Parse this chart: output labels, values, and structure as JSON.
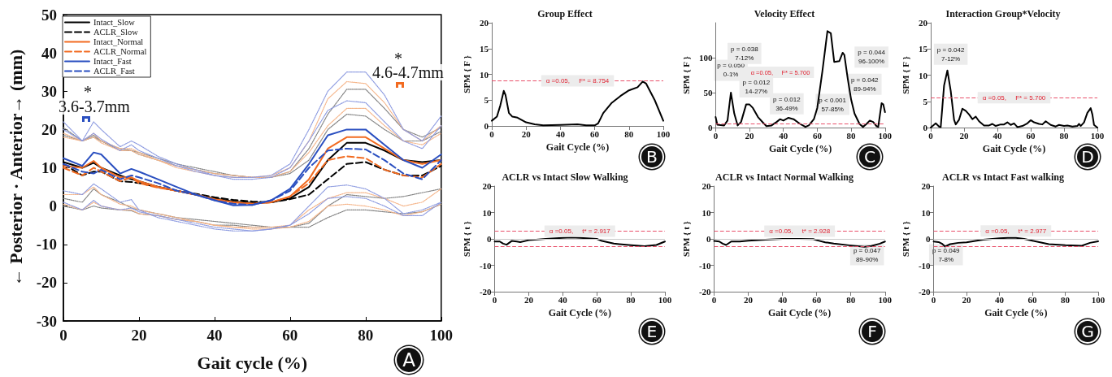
{
  "chart_data": [
    {
      "type": "line",
      "xlabel": "Gait cycle (%)",
      "ylabel": "← Posterior · Anterior→ (mm)",
      "x": [
        0,
        5,
        8,
        10,
        15,
        18,
        20,
        25,
        30,
        35,
        40,
        45,
        50,
        55,
        60,
        65,
        70,
        75,
        80,
        85,
        90,
        95,
        100
      ],
      "xlim": [
        0,
        100
      ],
      "xticks": [
        0,
        20,
        40,
        60,
        80,
        100
      ],
      "ylim": [
        -30,
        50
      ],
      "yticks": [
        -30,
        -20,
        -10,
        0,
        10,
        20,
        30,
        40,
        50
      ],
      "legend": "top left",
      "series": [
        {
          "name": "Intact_Slow",
          "color": "#000000",
          "line_style": "solid",
          "values": [
            11.5,
            10,
            11.3,
            10,
            8,
            7,
            6.5,
            5,
            4,
            3,
            2,
            1.2,
            0.8,
            1,
            2,
            5,
            12,
            16.5,
            16.5,
            14.5,
            12,
            11.5,
            12
          ]
        },
        {
          "name": "ACLR_Slow",
          "color": "#000000",
          "line_style": "dashed",
          "values": [
            11,
            8,
            9,
            9,
            6.5,
            6.3,
            6,
            5,
            4,
            3.2,
            2.3,
            1.6,
            1.2,
            1,
            1.8,
            3,
            7,
            11,
            11.5,
            9.5,
            8,
            8,
            10.5
          ]
        },
        {
          "name": "Intact_Normal",
          "color": "#f26b21",
          "line_style": "solid",
          "values": [
            10.5,
            10,
            11.8,
            10,
            7.5,
            7.5,
            6.5,
            5,
            4,
            3,
            1.8,
            1,
            0.6,
            1,
            2.5,
            7,
            15,
            18,
            18,
            15,
            12,
            11,
            12
          ]
        },
        {
          "name": "ACLR_Normal",
          "color": "#f26b21",
          "line_style": "dashed",
          "values": [
            10,
            8,
            10,
            9,
            6.5,
            7.5,
            6,
            4.8,
            4,
            3,
            1.8,
            1,
            0.6,
            1,
            2.5,
            6,
            12,
            13,
            12.5,
            9.5,
            8,
            7.5,
            11
          ]
        },
        {
          "name": "Intact_Fast",
          "color": "#2a4fc0",
          "line_style": "solid",
          "values": [
            12.5,
            10.5,
            14,
            13.5,
            8.5,
            9.7,
            9,
            7,
            5,
            3,
            1.5,
            0.2,
            0.3,
            1.5,
            4.5,
            11,
            18.5,
            20,
            20,
            16,
            12,
            10,
            13.5
          ]
        },
        {
          "name": "ACLR_Fast",
          "color": "#2a4fc0",
          "line_style": "dashed",
          "values": [
            11,
            9,
            8.5,
            9.5,
            7,
            8,
            7.5,
            6,
            4,
            3,
            1.5,
            0.6,
            0.3,
            1.5,
            4,
            10,
            14.5,
            15,
            14.8,
            12,
            8.5,
            7,
            12
          ]
        },
        {
          "color": "#808080",
          "line_style": "dotted",
          "values": [
            20.5,
            17,
            18.5,
            17,
            15,
            14.5,
            14,
            12.5,
            11,
            10,
            9,
            8,
            7.5,
            7.5,
            9,
            15,
            24,
            30.5,
            30.5,
            25.5,
            20,
            18,
            20.5
          ]
        },
        {
          "color": "#808080",
          "line_style": "dotted",
          "values": [
            2,
            1,
            4.5,
            3,
            1,
            -0.5,
            -1,
            -2,
            -3,
            -3.5,
            -4,
            -4.5,
            -5,
            -5.5,
            -5.5,
            -4.5,
            0,
            3,
            2.5,
            2,
            2.5,
            3.5,
            4.5
          ]
        },
        {
          "color": "#808080",
          "line_style": "dotted",
          "values": [
            18.5,
            17,
            18,
            17,
            14.5,
            14.5,
            13.5,
            12,
            10.5,
            9.5,
            8.5,
            8,
            7.5,
            7.5,
            8.5,
            12,
            20,
            24,
            23.5,
            20,
            17,
            17,
            19.5
          ]
        },
        {
          "color": "#808080",
          "line_style": "dotted",
          "values": [
            0,
            -1,
            0,
            -0.5,
            -1,
            -1.2,
            -2,
            -2.5,
            -3.5,
            -4,
            -5,
            -5,
            -5.5,
            -5.5,
            -5.5,
            -5.5,
            -3,
            -1,
            -1,
            -1.5,
            -2,
            -1.5,
            0.5
          ]
        },
        {
          "color": "#f5b488",
          "line_style": "dotted",
          "values": [
            19,
            17,
            19,
            17,
            15,
            15,
            14,
            12,
            10,
            9,
            8,
            7.5,
            7.5,
            8,
            10,
            17,
            28,
            32.5,
            32,
            27,
            20,
            17,
            21
          ]
        },
        {
          "color": "#f5b488",
          "line_style": "dotted",
          "values": [
            3,
            3,
            5,
            3,
            0.5,
            0,
            -1,
            -2,
            -3,
            -4,
            -5,
            -5.5,
            -5.5,
            -5.5,
            -5,
            -1,
            2,
            3.5,
            3.5,
            2,
            0,
            1,
            4.5
          ]
        },
        {
          "color": "#f5b488",
          "line_style": "dotted",
          "values": [
            18,
            17,
            18,
            16.5,
            14.5,
            14.5,
            13.5,
            12,
            10.5,
            9.5,
            8.5,
            8,
            7.5,
            7.5,
            9,
            14,
            21,
            25.5,
            25.5,
            21,
            17,
            16,
            19
          ]
        },
        {
          "color": "#f5b488",
          "line_style": "dotted",
          "values": [
            0.5,
            -1,
            1,
            0,
            -1,
            -1,
            -2,
            -2.5,
            -3.5,
            -4,
            -5,
            -5.5,
            -6,
            -6,
            -5.5,
            -4,
            0,
            0.5,
            0,
            -1,
            -2.5,
            -1.5,
            0.5
          ]
        },
        {
          "color": "#8c9ae0",
          "line_style": "dotted",
          "values": [
            22,
            17,
            22,
            20,
            15.5,
            17,
            16,
            13,
            11,
            9.5,
            8,
            7.5,
            7.5,
            8,
            11,
            20,
            30,
            35,
            35,
            29,
            20,
            17,
            23.5
          ]
        },
        {
          "color": "#8c9ae0",
          "line_style": "dotted",
          "values": [
            4,
            3,
            5.8,
            4.5,
            1,
            1.7,
            -1,
            -3,
            -4,
            -5,
            -6,
            -6.5,
            -6.5,
            -6,
            -5,
            0,
            5,
            5.5,
            4.5,
            2,
            -2,
            -1,
            1
          ]
        },
        {
          "color": "#8c9ae0",
          "line_style": "dotted",
          "values": [
            20,
            17,
            19,
            17.5,
            14.5,
            16,
            14.5,
            12.5,
            10.5,
            9,
            8,
            7,
            7,
            7.5,
            10,
            17,
            25,
            27.5,
            27,
            22,
            17,
            15,
            21
          ]
        },
        {
          "color": "#8c9ae0",
          "line_style": "dotted",
          "values": [
            1,
            -1,
            1.5,
            0,
            -1,
            -0.5,
            -1.5,
            -2.5,
            -3.5,
            -4.5,
            -5.5,
            -6,
            -6.5,
            -6,
            -5,
            -2,
            2,
            2.5,
            2,
            0,
            -2.5,
            -2.5,
            1
          ]
        }
      ],
      "annotations": [
        "*",
        "3.6-3.7mm",
        "*",
        "4.6-4.7mm",
        "A"
      ]
    },
    {
      "type": "line",
      "title": "Group Effect",
      "xlabel": "Gait Cycle (%)",
      "ylabel": "SPM { F }",
      "xlim": [
        0,
        100
      ],
      "xticks": [
        0,
        20,
        40,
        60,
        80,
        100
      ],
      "ylim": [
        0,
        20
      ],
      "yticks": [
        0,
        5,
        10,
        15,
        20
      ],
      "series": [
        {
          "color": "#000000",
          "x": [
            0,
            3,
            5,
            7,
            8,
            10,
            12,
            15,
            20,
            25,
            30,
            40,
            50,
            55,
            60,
            62,
            65,
            70,
            75,
            80,
            85,
            88,
            90,
            95,
            100
          ],
          "values": [
            1,
            1.8,
            4,
            6.8,
            6,
            2.5,
            1.8,
            1.6,
            0.7,
            0.3,
            0.1,
            0.2,
            0.3,
            0.1,
            0.1,
            0.5,
            2.5,
            4.5,
            5.8,
            6.9,
            7.5,
            8.6,
            8.2,
            5,
            1
          ]
        }
      ],
      "ref_lines": [
        {
          "axis": "y",
          "value": 8.754,
          "label": "α =0.05,     F* = 8.754",
          "color": "#e8506a",
          "line_style": "dashed"
        }
      ],
      "annotations": [
        "B"
      ]
    },
    {
      "type": "line",
      "title": "Velocity Effect",
      "xlabel": "Gait Cycle (%)",
      "ylabel": "SPM { F }",
      "xlim": [
        0,
        100
      ],
      "xticks": [
        0,
        20,
        40,
        60,
        80,
        100
      ],
      "ylim": [
        0,
        150
      ],
      "yticks": [
        0,
        50,
        100
      ],
      "series": [
        {
          "color": "#000000",
          "x": [
            0,
            1,
            5,
            7,
            9,
            11,
            13,
            15,
            18,
            20,
            22,
            25,
            28,
            30,
            33,
            36,
            38,
            40,
            43,
            46,
            50,
            53,
            55,
            58,
            60,
            63,
            66,
            68,
            70,
            73,
            75,
            76,
            78,
            80,
            82,
            85,
            87,
            89,
            91,
            93,
            95,
            96,
            98,
            99,
            100
          ],
          "values": [
            15,
            4,
            3,
            10,
            50,
            20,
            3,
            8,
            33,
            33,
            28,
            15,
            7,
            2,
            3,
            8,
            12,
            10,
            14,
            12,
            5,
            1,
            3,
            12,
            28,
            80,
            138,
            135,
            94,
            95,
            107,
            104,
            70,
            40,
            20,
            5,
            1,
            5,
            10,
            8,
            2,
            1,
            35,
            33,
            22
          ]
        }
      ],
      "ref_lines": [
        {
          "axis": "y",
          "value": 5.7,
          "label": null,
          "color": "#e8506a",
          "line_style": "dashed"
        }
      ],
      "annotations": [
        {
          "text": "p = 0.050\n0-1%",
          "x": 9,
          "y": 82
        },
        {
          "text": "p = 0.038\n7-12%",
          "x": 17,
          "y": 106
        },
        {
          "text": "p = 0.012\n14-27%",
          "x": 24,
          "y": 58
        },
        {
          "text": "p = 0.012\n36-49%",
          "x": 42,
          "y": 34
        },
        {
          "text": "p < 0.001\n57-85%",
          "x": 69,
          "y": 33
        },
        {
          "text": "p = 0.044\n96-100%",
          "x": 92,
          "y": 101
        },
        {
          "text": "p = 0.042\n89-94%",
          "x": 88,
          "y": 62
        },
        "α =0.05,     F* = 5.700",
        "C"
      ]
    },
    {
      "type": "line",
      "title": "Interaction Group*Velocity",
      "xlabel": "Gait Cycle (%)",
      "ylabel": "SPM { F }",
      "xlim": [
        0,
        100
      ],
      "xticks": [
        0,
        20,
        40,
        60,
        80,
        100
      ],
      "ylim": [
        0,
        20
      ],
      "yticks": [
        0,
        5,
        10,
        15,
        20
      ],
      "series": [
        {
          "color": "#000000",
          "x": [
            0,
            3,
            5,
            6,
            7,
            8,
            10,
            12,
            14,
            15,
            17,
            19,
            21,
            23,
            25,
            27,
            29,
            32,
            35,
            37,
            39,
            42,
            44,
            46,
            48,
            50,
            52,
            55,
            58,
            60,
            62,
            65,
            67,
            69,
            72,
            75,
            77,
            80,
            82,
            85,
            88,
            89,
            90,
            92,
            94,
            96,
            97,
            98,
            100
          ],
          "values": [
            0,
            0.8,
            0.2,
            0.1,
            4,
            8,
            10.9,
            7,
            1.5,
            0.6,
            1.5,
            3.6,
            3.2,
            2.5,
            1.6,
            2.1,
            1.2,
            0.4,
            0.4,
            0.7,
            0.3,
            0.6,
            0.6,
            1,
            0.5,
            0.8,
            0.1,
            0.3,
            0.8,
            1.4,
            1,
            0.7,
            0.6,
            1.2,
            0.5,
            0.2,
            0.5,
            0.3,
            0.4,
            0.2,
            0.3,
            0.7,
            0.3,
            1,
            2.8,
            3.7,
            2.5,
            0.5,
            0
          ]
        }
      ],
      "ref_lines": [
        {
          "axis": "y",
          "value": 5.7,
          "label": "α =0.05,     F* = 5.700",
          "color": "#e8506a",
          "line_style": "dashed"
        }
      ],
      "annotations": [
        {
          "text": "p = 0.042\n7-12%",
          "x": 12,
          "y": 14
        },
        "D"
      ]
    },
    {
      "type": "line",
      "title": "ACLR vs Intact Slow Walking",
      "xlabel": "Gait Cycle (%)",
      "ylabel": "SPM { t }",
      "xlim": [
        0,
        100
      ],
      "xticks": [
        0,
        20,
        40,
        60,
        80,
        100
      ],
      "ylim": [
        -20,
        20
      ],
      "yticks": [
        -20,
        -10,
        0,
        10,
        20
      ],
      "series": [
        {
          "color": "#000000",
          "x": [
            0,
            3,
            5,
            7,
            10,
            13,
            15,
            20,
            30,
            40,
            45,
            50,
            60,
            63,
            70,
            80,
            88,
            95,
            100
          ],
          "values": [
            -1,
            -1,
            -1.8,
            -2.2,
            -0.8,
            -1,
            -1.2,
            -0.5,
            0,
            0.4,
            0.5,
            0.4,
            0,
            -0.8,
            -1.8,
            -2.4,
            -2.8,
            -2.3,
            -1
          ]
        }
      ],
      "ref_lines": [
        {
          "axis": "y",
          "value": 0,
          "label": null,
          "color": "#c8c8c8",
          "line_style": "solid"
        },
        {
          "axis": "y",
          "value": 2.917,
          "label": "α =0.05,     t* = 2.917",
          "color": "#e8506a",
          "line_style": "dashed"
        },
        {
          "axis": "y",
          "value": -2.917,
          "label": null,
          "color": "#e8506a",
          "line_style": "dashed"
        }
      ],
      "annotations": [
        "E"
      ]
    },
    {
      "type": "line",
      "title": "ACLR vs Intact Normal Walking",
      "xlabel": "Gait Cycle (%)",
      "ylabel": "SPM { t }",
      "xlim": [
        0,
        100
      ],
      "xticks": [
        0,
        20,
        40,
        60,
        80,
        100
      ],
      "ylim": [
        -20,
        20
      ],
      "yticks": [
        -20,
        -10,
        0,
        10,
        20
      ],
      "series": [
        {
          "color": "#000000",
          "x": [
            0,
            3,
            5,
            7,
            10,
            15,
            20,
            30,
            40,
            50,
            58,
            60,
            65,
            70,
            80,
            88,
            92,
            97,
            100
          ],
          "values": [
            -0.8,
            -1,
            -1.8,
            -2.3,
            -1,
            -1,
            -0.7,
            -0.3,
            0,
            0,
            -0.1,
            -0.5,
            -1.3,
            -1.8,
            -2.5,
            -3,
            -2.7,
            -1.8,
            -1
          ]
        }
      ],
      "ref_lines": [
        {
          "axis": "y",
          "value": 0,
          "label": null,
          "color": "#c8c8c8",
          "line_style": "solid"
        },
        {
          "axis": "y",
          "value": 2.928,
          "label": "α =0.05,     t* = 2.928",
          "color": "#e8506a",
          "line_style": "dashed"
        },
        {
          "axis": "y",
          "value": -2.928,
          "label": null,
          "color": "#e8506a",
          "line_style": "dashed"
        }
      ],
      "annotations": [
        {
          "text": "p = 0.047\n89-90%",
          "x": 89.5,
          "y": -6
        },
        "F"
      ]
    },
    {
      "type": "line",
      "title": "ACLR vs Intact Fast walking",
      "xlabel": "Gait Cycle (%)",
      "ylabel": "SPM { t }",
      "xlim": [
        0,
        100
      ],
      "xticks": [
        0,
        20,
        40,
        60,
        80,
        100
      ],
      "ylim": [
        -20,
        20
      ],
      "yticks": [
        -20,
        -10,
        0,
        10,
        20
      ],
      "series": [
        {
          "color": "#000000",
          "x": [
            0,
            3,
            5,
            7,
            10,
            15,
            20,
            30,
            40,
            45,
            50,
            55,
            60,
            70,
            80,
            90,
            95,
            100
          ],
          "values": [
            -1,
            -1.2,
            -1.8,
            -2.9,
            -2,
            -1.5,
            -1.3,
            -0.3,
            0.2,
            0.4,
            0.4,
            0,
            -0.7,
            -2,
            -2.4,
            -2.6,
            -1.5,
            -0.9
          ]
        }
      ],
      "ref_lines": [
        {
          "axis": "y",
          "value": 0,
          "label": null,
          "color": "#c8c8c8",
          "line_style": "solid"
        },
        {
          "axis": "y",
          "value": 2.977,
          "label": "α =0.05,     t* = 2.977",
          "color": "#e8506a",
          "line_style": "dashed"
        },
        {
          "axis": "y",
          "value": -2.977,
          "label": null,
          "color": "#e8506a",
          "line_style": "dashed"
        }
      ],
      "annotations": [
        {
          "text": "p = 0.049\n7-8%",
          "x": 7.5,
          "y": -6
        },
        "G"
      ]
    }
  ]
}
